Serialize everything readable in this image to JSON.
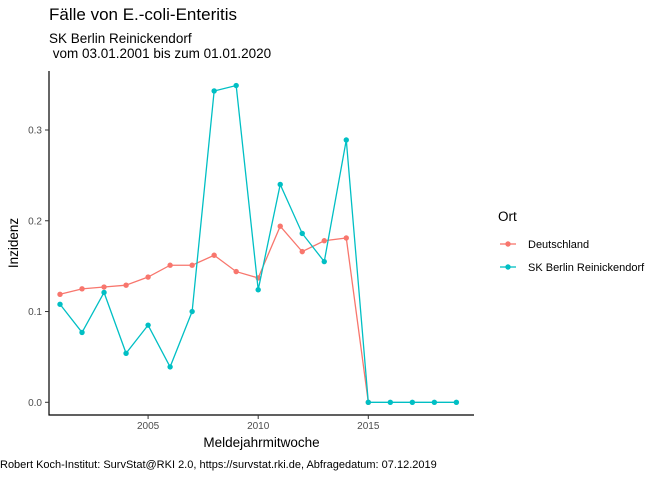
{
  "chart_data": {
    "type": "line",
    "title": "Fälle von E.-coli-Enteritis",
    "subtitle": "SK Berlin Reinickendorf\n vom 03.01.2001 bis zum 01.01.2020",
    "caption": "Robert Koch-Institut: SurvStat@RKI 2.0, https://survstat.rki.de, Abfragedatum: 07.12.2019",
    "xlabel": "Meldejahrmitwoche",
    "ylabel": "Inzidenz",
    "xlim": [
      2000.5,
      2019.8
    ],
    "ylim": [
      -0.014,
      0.365
    ],
    "xticks": [
      2005,
      2010,
      2015
    ],
    "yticks": [
      0.0,
      0.1,
      0.2,
      0.3
    ],
    "ytick_labels": [
      "0.0",
      "0.1",
      "0.2",
      "0.3"
    ],
    "legend": {
      "title": "Ort",
      "position": "right"
    },
    "x": [
      2001,
      2002,
      2003,
      2004,
      2005,
      2006,
      2007,
      2008,
      2009,
      2010,
      2011,
      2012,
      2013,
      2014,
      2015,
      2016,
      2017,
      2018,
      2019
    ],
    "series": [
      {
        "name": "Deutschland",
        "color": "#F8766D",
        "values": [
          0.119,
          0.125,
          0.127,
          0.129,
          0.138,
          0.151,
          0.151,
          0.162,
          0.144,
          0.137,
          0.194,
          0.166,
          0.178,
          0.181,
          0.0,
          null,
          null,
          null,
          null
        ]
      },
      {
        "name": "SK Berlin Reinickendorf",
        "color": "#00BFC4",
        "values": [
          0.108,
          0.077,
          0.121,
          0.054,
          0.085,
          0.039,
          0.1,
          0.343,
          0.349,
          0.124,
          0.24,
          0.186,
          0.155,
          0.289,
          0.0,
          0.0,
          0.0,
          0.0,
          0.0
        ]
      }
    ]
  }
}
